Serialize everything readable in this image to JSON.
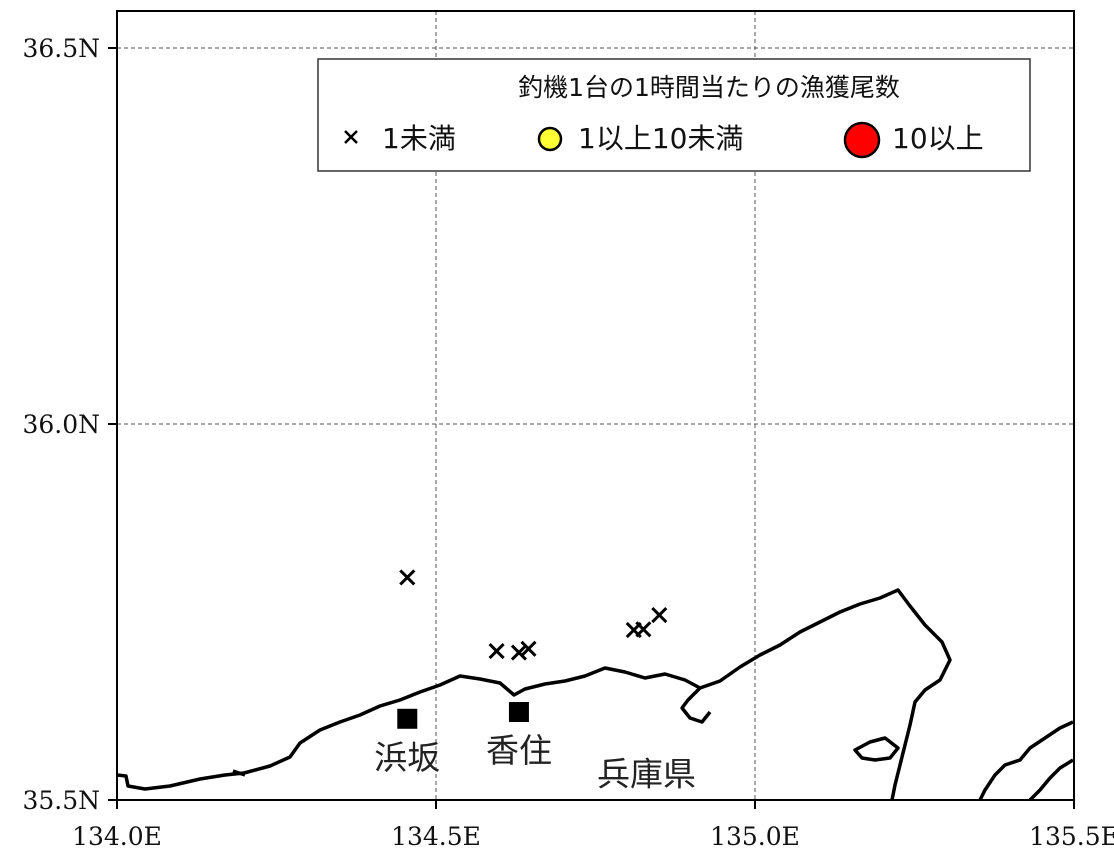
{
  "map": {
    "lon_range": [
      134.0,
      135.5
    ],
    "lat_range": [
      35.5,
      36.5
    ],
    "lon_ticks": [
      {
        "value": 134.0,
        "label": "134.0E"
      },
      {
        "value": 134.5,
        "label": "134.5E"
      },
      {
        "value": 135.0,
        "label": "135.0E"
      },
      {
        "value": 135.5,
        "label": "135.5E"
      }
    ],
    "lat_ticks": [
      {
        "value": 35.5,
        "label": "35.5N"
      },
      {
        "value": 36.0,
        "label": "36.0N"
      },
      {
        "value": 36.5,
        "label": "36.5N"
      }
    ],
    "gridlines": "dashed",
    "coastline_color": "#000000"
  },
  "legend": {
    "title": "釣機1台の1時間当たりの漁獲尾数",
    "placement": "top-right",
    "items": [
      {
        "label": "1未満",
        "symbol": "cross",
        "color": "#000000"
      },
      {
        "label": "1以上10未満",
        "symbol": "circle-small",
        "color": "#ffff33"
      },
      {
        "label": "10以上",
        "symbol": "circle-large",
        "color": "#ff0000"
      }
    ]
  },
  "ports": [
    {
      "name": "浜坂",
      "lon": 134.455,
      "lat": 35.608
    },
    {
      "name": "香住",
      "lon": 134.63,
      "lat": 35.617
    }
  ],
  "region_label": {
    "name": "兵庫県",
    "lon": 134.83,
    "lat": 35.535
  },
  "catch_points": [
    {
      "lon": 134.455,
      "lat": 35.796,
      "category": "1未満"
    },
    {
      "lon": 134.595,
      "lat": 35.698,
      "category": "1未満"
    },
    {
      "lon": 134.63,
      "lat": 35.696,
      "category": "1未満"
    },
    {
      "lon": 134.645,
      "lat": 35.701,
      "category": "1未満"
    },
    {
      "lon": 134.81,
      "lat": 35.726,
      "category": "1未満"
    },
    {
      "lon": 134.825,
      "lat": 35.727,
      "category": "1未満"
    },
    {
      "lon": 134.85,
      "lat": 35.746,
      "category": "1未満"
    }
  ]
}
